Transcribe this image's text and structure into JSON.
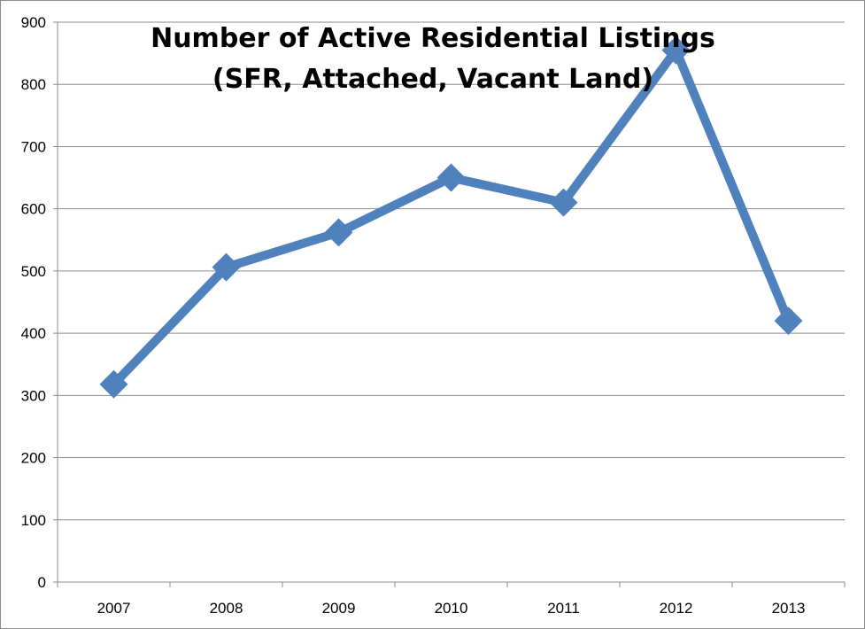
{
  "chart_data": {
    "type": "line",
    "title": "Number of Active Residential  Listings",
    "subtitle": "(SFR, Attached, Vacant Land)",
    "xlabel": "",
    "ylabel": "",
    "categories": [
      "2007",
      "2008",
      "2009",
      "2010",
      "2011",
      "2012",
      "2013"
    ],
    "series": [
      {
        "values": [
          318,
          506,
          562,
          650,
          610,
          855,
          420
        ],
        "color": "#4F81BD",
        "marker": "diamond"
      }
    ],
    "ylim": [
      0,
      900
    ],
    "yticks": [
      0,
      100,
      200,
      300,
      400,
      500,
      600,
      700,
      800,
      900
    ],
    "grid": true,
    "legend": "none",
    "colors": {
      "gridline": "#8c8c8c",
      "axis": "#8c8c8c",
      "border": "#8c8c8c"
    }
  }
}
